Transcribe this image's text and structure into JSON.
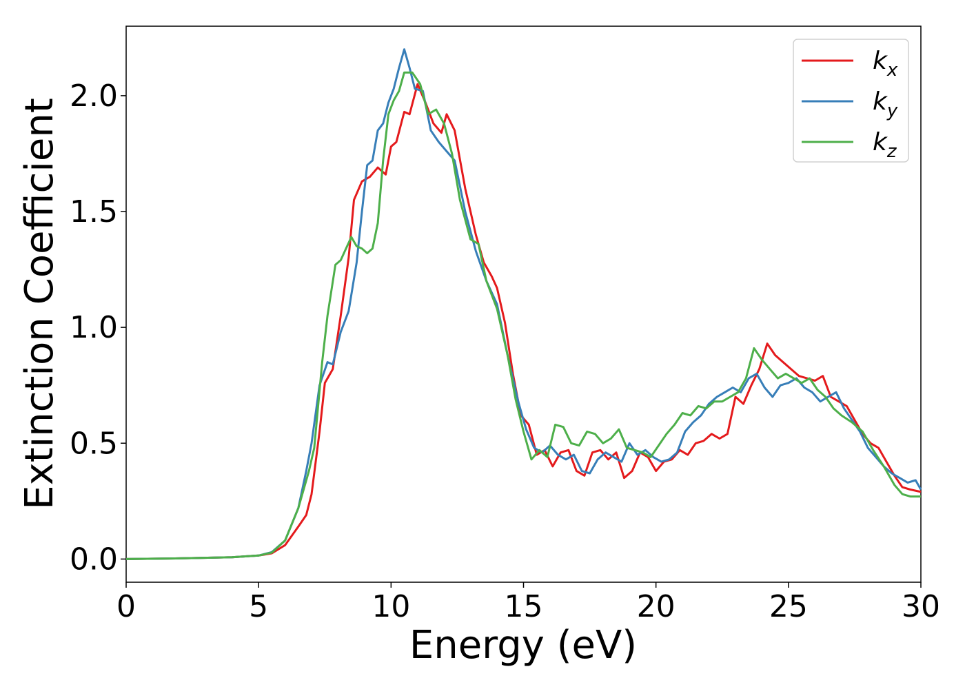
{
  "chart_data": {
    "type": "line",
    "title": "",
    "xlabel": "Energy (eV)",
    "ylabel": "Extinction Coefficient",
    "xlim": [
      0,
      30
    ],
    "ylim": [
      -0.1,
      2.3
    ],
    "xticks": [
      0,
      5,
      10,
      15,
      20,
      25,
      30
    ],
    "xtick_labels": [
      "0",
      "5",
      "10",
      "15",
      "20",
      "25",
      "30"
    ],
    "yticks": [
      0.0,
      0.5,
      1.0,
      1.5,
      2.0
    ],
    "ytick_labels": [
      "0.0",
      "0.5",
      "1.0",
      "1.5",
      "2.0"
    ],
    "grid": false,
    "legend_position": "top-right",
    "legend": [
      {
        "base": "k",
        "sub": "x",
        "color": "#e41a1c"
      },
      {
        "base": "k",
        "sub": "y",
        "color": "#377eb8"
      },
      {
        "base": "k",
        "sub": "z",
        "color": "#4daf4a"
      }
    ],
    "series": [
      {
        "name": "kx",
        "color": "#e41a1c",
        "points": [
          [
            0,
            0.0
          ],
          [
            2,
            0.003
          ],
          [
            4,
            0.008
          ],
          [
            5,
            0.015
          ],
          [
            5.5,
            0.025
          ],
          [
            6,
            0.06
          ],
          [
            6.5,
            0.14
          ],
          [
            6.8,
            0.19
          ],
          [
            7.0,
            0.28
          ],
          [
            7.3,
            0.55
          ],
          [
            7.5,
            0.76
          ],
          [
            7.8,
            0.82
          ],
          [
            8.1,
            1.05
          ],
          [
            8.4,
            1.3
          ],
          [
            8.6,
            1.55
          ],
          [
            8.9,
            1.63
          ],
          [
            9.2,
            1.65
          ],
          [
            9.5,
            1.69
          ],
          [
            9.8,
            1.66
          ],
          [
            10.0,
            1.78
          ],
          [
            10.2,
            1.8
          ],
          [
            10.5,
            1.93
          ],
          [
            10.7,
            1.92
          ],
          [
            11.0,
            2.05
          ],
          [
            11.3,
            1.97
          ],
          [
            11.6,
            1.88
          ],
          [
            11.9,
            1.84
          ],
          [
            12.1,
            1.92
          ],
          [
            12.4,
            1.85
          ],
          [
            12.8,
            1.6
          ],
          [
            13.2,
            1.4
          ],
          [
            13.5,
            1.28
          ],
          [
            13.8,
            1.22
          ],
          [
            14.0,
            1.17
          ],
          [
            14.3,
            1.02
          ],
          [
            14.6,
            0.8
          ],
          [
            14.9,
            0.62
          ],
          [
            15.2,
            0.58
          ],
          [
            15.5,
            0.45
          ],
          [
            15.8,
            0.47
          ],
          [
            16.1,
            0.4
          ],
          [
            16.4,
            0.46
          ],
          [
            16.7,
            0.47
          ],
          [
            17.0,
            0.38
          ],
          [
            17.3,
            0.36
          ],
          [
            17.6,
            0.46
          ],
          [
            17.9,
            0.47
          ],
          [
            18.2,
            0.43
          ],
          [
            18.5,
            0.46
          ],
          [
            18.8,
            0.35
          ],
          [
            19.1,
            0.38
          ],
          [
            19.4,
            0.46
          ],
          [
            19.7,
            0.44
          ],
          [
            20.0,
            0.38
          ],
          [
            20.3,
            0.42
          ],
          [
            20.6,
            0.43
          ],
          [
            20.9,
            0.47
          ],
          [
            21.2,
            0.45
          ],
          [
            21.5,
            0.5
          ],
          [
            21.8,
            0.51
          ],
          [
            22.1,
            0.54
          ],
          [
            22.4,
            0.52
          ],
          [
            22.7,
            0.54
          ],
          [
            23.0,
            0.7
          ],
          [
            23.3,
            0.67
          ],
          [
            23.6,
            0.75
          ],
          [
            23.9,
            0.82
          ],
          [
            24.2,
            0.93
          ],
          [
            24.5,
            0.88
          ],
          [
            24.8,
            0.85
          ],
          [
            25.1,
            0.82
          ],
          [
            25.4,
            0.79
          ],
          [
            25.7,
            0.78
          ],
          [
            26.0,
            0.77
          ],
          [
            26.3,
            0.79
          ],
          [
            26.6,
            0.7
          ],
          [
            26.9,
            0.68
          ],
          [
            27.2,
            0.66
          ],
          [
            27.5,
            0.6
          ],
          [
            27.8,
            0.54
          ],
          [
            28.1,
            0.5
          ],
          [
            28.4,
            0.48
          ],
          [
            28.7,
            0.42
          ],
          [
            29.0,
            0.36
          ],
          [
            29.3,
            0.31
          ],
          [
            29.6,
            0.3
          ],
          [
            30,
            0.29
          ]
        ]
      },
      {
        "name": "ky",
        "color": "#377eb8",
        "points": [
          [
            0,
            0.0
          ],
          [
            2,
            0.003
          ],
          [
            4,
            0.008
          ],
          [
            5,
            0.015
          ],
          [
            5.5,
            0.03
          ],
          [
            6,
            0.08
          ],
          [
            6.5,
            0.22
          ],
          [
            6.8,
            0.38
          ],
          [
            7.0,
            0.5
          ],
          [
            7.3,
            0.75
          ],
          [
            7.6,
            0.85
          ],
          [
            7.8,
            0.84
          ],
          [
            8.1,
            0.98
          ],
          [
            8.4,
            1.07
          ],
          [
            8.7,
            1.28
          ],
          [
            8.9,
            1.5
          ],
          [
            9.1,
            1.7
          ],
          [
            9.3,
            1.72
          ],
          [
            9.5,
            1.85
          ],
          [
            9.7,
            1.88
          ],
          [
            9.9,
            1.97
          ],
          [
            10.1,
            2.03
          ],
          [
            10.3,
            2.12
          ],
          [
            10.5,
            2.2
          ],
          [
            10.7,
            2.12
          ],
          [
            10.9,
            2.03
          ],
          [
            11.2,
            2.02
          ],
          [
            11.5,
            1.85
          ],
          [
            11.8,
            1.8
          ],
          [
            12.1,
            1.76
          ],
          [
            12.4,
            1.72
          ],
          [
            12.8,
            1.5
          ],
          [
            13.2,
            1.33
          ],
          [
            13.6,
            1.2
          ],
          [
            14.0,
            1.1
          ],
          [
            14.4,
            0.88
          ],
          [
            14.8,
            0.68
          ],
          [
            15.1,
            0.56
          ],
          [
            15.4,
            0.48
          ],
          [
            15.7,
            0.46
          ],
          [
            16.0,
            0.49
          ],
          [
            16.3,
            0.45
          ],
          [
            16.6,
            0.43
          ],
          [
            16.9,
            0.45
          ],
          [
            17.2,
            0.38
          ],
          [
            17.5,
            0.37
          ],
          [
            17.8,
            0.43
          ],
          [
            18.1,
            0.46
          ],
          [
            18.4,
            0.44
          ],
          [
            18.7,
            0.42
          ],
          [
            19.0,
            0.5
          ],
          [
            19.3,
            0.45
          ],
          [
            19.6,
            0.47
          ],
          [
            19.9,
            0.44
          ],
          [
            20.2,
            0.42
          ],
          [
            20.5,
            0.43
          ],
          [
            20.8,
            0.46
          ],
          [
            21.1,
            0.55
          ],
          [
            21.4,
            0.59
          ],
          [
            21.7,
            0.62
          ],
          [
            22.0,
            0.67
          ],
          [
            22.3,
            0.7
          ],
          [
            22.6,
            0.72
          ],
          [
            22.9,
            0.74
          ],
          [
            23.2,
            0.72
          ],
          [
            23.5,
            0.78
          ],
          [
            23.8,
            0.8
          ],
          [
            24.1,
            0.74
          ],
          [
            24.4,
            0.7
          ],
          [
            24.7,
            0.75
          ],
          [
            25.0,
            0.76
          ],
          [
            25.3,
            0.78
          ],
          [
            25.6,
            0.74
          ],
          [
            25.9,
            0.72
          ],
          [
            26.2,
            0.68
          ],
          [
            26.5,
            0.7
          ],
          [
            26.8,
            0.72
          ],
          [
            27.1,
            0.65
          ],
          [
            27.4,
            0.6
          ],
          [
            27.7,
            0.55
          ],
          [
            28.0,
            0.48
          ],
          [
            28.3,
            0.44
          ],
          [
            28.6,
            0.4
          ],
          [
            28.9,
            0.37
          ],
          [
            29.2,
            0.35
          ],
          [
            29.5,
            0.33
          ],
          [
            29.8,
            0.34
          ],
          [
            30,
            0.3
          ]
        ]
      },
      {
        "name": "kz",
        "color": "#4daf4a",
        "points": [
          [
            0,
            0.0
          ],
          [
            2,
            0.003
          ],
          [
            4,
            0.008
          ],
          [
            5,
            0.015
          ],
          [
            5.5,
            0.028
          ],
          [
            6,
            0.08
          ],
          [
            6.5,
            0.22
          ],
          [
            6.9,
            0.38
          ],
          [
            7.1,
            0.48
          ],
          [
            7.4,
            0.85
          ],
          [
            7.6,
            1.05
          ],
          [
            7.9,
            1.27
          ],
          [
            8.1,
            1.29
          ],
          [
            8.3,
            1.34
          ],
          [
            8.5,
            1.39
          ],
          [
            8.7,
            1.35
          ],
          [
            8.9,
            1.34
          ],
          [
            9.1,
            1.32
          ],
          [
            9.3,
            1.34
          ],
          [
            9.5,
            1.45
          ],
          [
            9.7,
            1.72
          ],
          [
            9.9,
            1.92
          ],
          [
            10.1,
            1.98
          ],
          [
            10.3,
            2.02
          ],
          [
            10.5,
            2.1
          ],
          [
            10.8,
            2.1
          ],
          [
            11.1,
            2.05
          ],
          [
            11.4,
            1.92
          ],
          [
            11.7,
            1.94
          ],
          [
            12.0,
            1.88
          ],
          [
            12.3,
            1.75
          ],
          [
            12.6,
            1.55
          ],
          [
            13.0,
            1.38
          ],
          [
            13.3,
            1.36
          ],
          [
            13.6,
            1.2
          ],
          [
            14.0,
            1.08
          ],
          [
            14.4,
            0.88
          ],
          [
            14.7,
            0.69
          ],
          [
            15.0,
            0.55
          ],
          [
            15.3,
            0.43
          ],
          [
            15.6,
            0.47
          ],
          [
            15.9,
            0.44
          ],
          [
            16.2,
            0.58
          ],
          [
            16.5,
            0.57
          ],
          [
            16.8,
            0.5
          ],
          [
            17.1,
            0.49
          ],
          [
            17.4,
            0.55
          ],
          [
            17.7,
            0.54
          ],
          [
            18.0,
            0.5
          ],
          [
            18.3,
            0.52
          ],
          [
            18.6,
            0.56
          ],
          [
            18.9,
            0.48
          ],
          [
            19.2,
            0.47
          ],
          [
            19.5,
            0.46
          ],
          [
            19.8,
            0.44
          ],
          [
            20.1,
            0.49
          ],
          [
            20.4,
            0.54
          ],
          [
            20.7,
            0.58
          ],
          [
            21.0,
            0.63
          ],
          [
            21.3,
            0.62
          ],
          [
            21.6,
            0.66
          ],
          [
            21.9,
            0.65
          ],
          [
            22.2,
            0.68
          ],
          [
            22.5,
            0.68
          ],
          [
            22.8,
            0.7
          ],
          [
            23.1,
            0.72
          ],
          [
            23.4,
            0.78
          ],
          [
            23.7,
            0.91
          ],
          [
            24.0,
            0.86
          ],
          [
            24.3,
            0.82
          ],
          [
            24.6,
            0.78
          ],
          [
            24.9,
            0.8
          ],
          [
            25.2,
            0.78
          ],
          [
            25.5,
            0.76
          ],
          [
            25.8,
            0.78
          ],
          [
            26.1,
            0.73
          ],
          [
            26.4,
            0.7
          ],
          [
            26.7,
            0.65
          ],
          [
            27.0,
            0.62
          ],
          [
            27.4,
            0.59
          ],
          [
            27.8,
            0.55
          ],
          [
            28.2,
            0.47
          ],
          [
            28.6,
            0.4
          ],
          [
            29.0,
            0.32
          ],
          [
            29.3,
            0.28
          ],
          [
            29.6,
            0.27
          ],
          [
            30,
            0.27
          ]
        ]
      }
    ]
  }
}
